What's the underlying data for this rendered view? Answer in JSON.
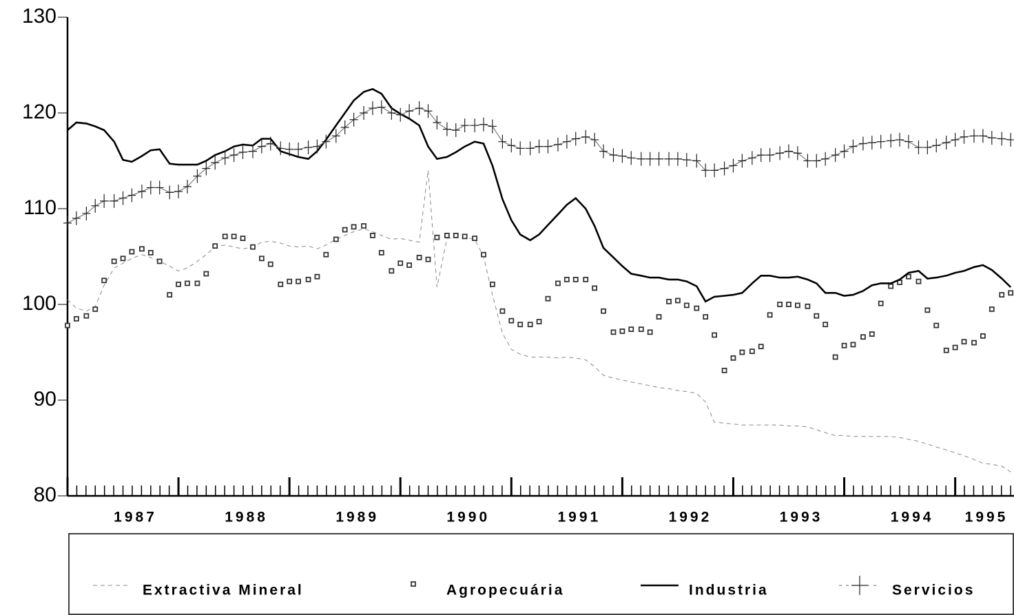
{
  "chart_data": {
    "type": "line",
    "xlim": [
      1987,
      1995.53
    ],
    "ylim": [
      80,
      130
    ],
    "yticks": [
      80,
      90,
      100,
      110,
      120,
      130
    ],
    "xticks": [
      {
        "value": 1987,
        "label": "1987"
      },
      {
        "value": 1988,
        "label": "1988"
      },
      {
        "value": 1989,
        "label": "1989"
      },
      {
        "value": 1990,
        "label": "1990"
      },
      {
        "value": 1991,
        "label": "1991"
      },
      {
        "value": 1992,
        "label": "1992"
      },
      {
        "value": 1993,
        "label": "1993"
      },
      {
        "value": 1994,
        "label": "1994"
      },
      {
        "value": 1995,
        "label": "1995"
      }
    ],
    "x": [
      1987,
      1987.08,
      1987.17,
      1987.25,
      1987.33,
      1987.42,
      1987.5,
      1987.58,
      1987.67,
      1987.75,
      1987.83,
      1987.92,
      1988,
      1988.08,
      1988.17,
      1988.25,
      1988.33,
      1988.42,
      1988.5,
      1988.58,
      1988.67,
      1988.75,
      1988.83,
      1988.92,
      1989,
      1989.08,
      1989.17,
      1989.25,
      1989.33,
      1989.42,
      1989.5,
      1989.58,
      1989.67,
      1989.75,
      1989.83,
      1989.92,
      1990,
      1990.08,
      1990.17,
      1990.25,
      1990.33,
      1990.42,
      1990.5,
      1990.58,
      1990.67,
      1990.75,
      1990.83,
      1990.92,
      1991,
      1991.08,
      1991.17,
      1991.25,
      1991.33,
      1991.42,
      1991.5,
      1991.58,
      1991.67,
      1991.75,
      1991.83,
      1991.92,
      1992,
      1992.08,
      1992.17,
      1992.25,
      1992.33,
      1992.42,
      1992.5,
      1992.58,
      1992.67,
      1992.75,
      1992.83,
      1992.92,
      1993,
      1993.08,
      1993.17,
      1993.25,
      1993.33,
      1993.42,
      1993.5,
      1993.58,
      1993.67,
      1993.75,
      1993.83,
      1993.92,
      1994,
      1994.08,
      1994.17,
      1994.25,
      1994.33,
      1994.42,
      1994.5,
      1994.58,
      1994.67,
      1994.75,
      1994.83,
      1994.92,
      1995,
      1995.08,
      1995.17,
      1995.25,
      1995.33,
      1995.42,
      1995.5
    ],
    "legend": "bottom",
    "series": [
      {
        "name": "Extractiva Mineral",
        "color": "#888888",
        "linestyle": "dashed",
        "marker": "none",
        "values": [
          100.5,
          99.6,
          99.3,
          99.8,
          102.0,
          103.8,
          104.3,
          104.8,
          105.2,
          104.9,
          104.5,
          104.0,
          103.5,
          103.8,
          104.5,
          105.2,
          106.0,
          106.2,
          106.0,
          105.8,
          106.0,
          106.5,
          106.6,
          106.4,
          106.1,
          106.0,
          106.1,
          105.8,
          106.2,
          106.8,
          107.2,
          107.6,
          107.9,
          107.6,
          107.2,
          106.8,
          106.9,
          106.7,
          106.5,
          114.0,
          101.8,
          106.9,
          107.0,
          107.0,
          106.8,
          105.0,
          101.0,
          97.0,
          95.3,
          94.8,
          94.5,
          94.5,
          94.5,
          94.4,
          94.5,
          94.4,
          94.2,
          93.5,
          92.6,
          92.3,
          92.1,
          91.9,
          91.7,
          91.5,
          91.3,
          91.2,
          91.0,
          90.9,
          90.7,
          89.8,
          87.7,
          87.6,
          87.5,
          87.4,
          87.4,
          87.4,
          87.4,
          87.4,
          87.3,
          87.3,
          87.2,
          86.9,
          86.6,
          86.3,
          86.3,
          86.2,
          86.2,
          86.2,
          86.2,
          86.2,
          86.1,
          85.9,
          85.7,
          85.4,
          85.1,
          84.8,
          84.5,
          84.2,
          83.8,
          83.4,
          83.3,
          83.1,
          82.5
        ]
      },
      {
        "name": "Agropecuária",
        "color": "#333333",
        "linestyle": "none",
        "marker": "square",
        "values": [
          97.8,
          98.5,
          98.8,
          99.5,
          102.5,
          104.5,
          104.8,
          105.5,
          105.8,
          105.4,
          104.5,
          101.0,
          102.1,
          102.2,
          102.2,
          103.2,
          106.1,
          107.1,
          107.1,
          106.9,
          106.0,
          104.8,
          104.2,
          102.1,
          102.4,
          102.4,
          102.6,
          102.9,
          105.2,
          106.8,
          107.8,
          108.1,
          108.2,
          107.2,
          105.4,
          103.5,
          104.3,
          104.1,
          104.9,
          104.7,
          107.0,
          107.2,
          107.2,
          107.1,
          106.9,
          105.2,
          102.1,
          99.3,
          98.3,
          97.9,
          97.9,
          98.2,
          100.6,
          102.2,
          102.6,
          102.6,
          102.6,
          101.7,
          99.3,
          97.1,
          97.2,
          97.4,
          97.4,
          97.1,
          98.7,
          100.3,
          100.4,
          99.9,
          99.6,
          98.7,
          96.8,
          93.1,
          94.4,
          95.0,
          95.1,
          95.6,
          98.9,
          100.0,
          100.0,
          99.9,
          99.8,
          98.8,
          97.9,
          94.5,
          95.7,
          95.8,
          96.6,
          96.9,
          100.1,
          101.9,
          102.3,
          102.9,
          102.4,
          99.4,
          97.8,
          95.2,
          95.5,
          96.1,
          96.0,
          96.7,
          99.5,
          101.0,
          101.2
        ]
      },
      {
        "name": "Industria",
        "color": "#000000",
        "linestyle": "solid",
        "marker": "none",
        "values": [
          118.2,
          119.0,
          118.9,
          118.6,
          118.2,
          117.0,
          115.1,
          114.9,
          115.5,
          116.1,
          116.2,
          114.7,
          114.6,
          114.6,
          114.6,
          115.0,
          115.6,
          116.0,
          116.5,
          116.7,
          116.6,
          117.3,
          117.3,
          116.0,
          115.7,
          115.4,
          115.2,
          116.0,
          117.2,
          118.7,
          120.0,
          121.3,
          122.2,
          122.5,
          122.0,
          120.5,
          119.9,
          119.4,
          118.7,
          116.5,
          115.2,
          115.4,
          115.9,
          116.5,
          117.0,
          116.8,
          114.5,
          111.0,
          108.8,
          107.3,
          106.7,
          107.3,
          108.3,
          109.4,
          110.4,
          111.1,
          110.0,
          108.2,
          105.9,
          104.9,
          104.0,
          103.2,
          103.0,
          102.8,
          102.8,
          102.6,
          102.6,
          102.4,
          101.9,
          100.3,
          100.8,
          100.9,
          101.0,
          101.2,
          102.2,
          103.0,
          103.0,
          102.8,
          102.8,
          102.9,
          102.6,
          102.2,
          101.2,
          101.2,
          100.9,
          101.0,
          101.4,
          102.0,
          102.2,
          102.2,
          102.6,
          103.3,
          103.5,
          102.7,
          102.8,
          103.0,
          103.3,
          103.5,
          103.9,
          104.1,
          103.6,
          102.7,
          101.8
        ]
      },
      {
        "name": "Servicios",
        "color": "#666666",
        "linestyle": "thin",
        "marker": "plus",
        "values": [
          108.5,
          109.0,
          109.5,
          110.3,
          110.8,
          110.8,
          111.1,
          111.4,
          111.8,
          112.2,
          112.2,
          111.7,
          111.8,
          112.3,
          113.4,
          114.2,
          114.8,
          115.3,
          115.6,
          115.9,
          116.0,
          116.5,
          116.8,
          116.3,
          116.2,
          116.2,
          116.4,
          116.5,
          117.0,
          117.6,
          118.5,
          119.3,
          120.0,
          120.5,
          120.6,
          120.0,
          119.8,
          120.2,
          120.5,
          120.2,
          119.0,
          118.3,
          118.2,
          118.7,
          118.7,
          118.8,
          118.6,
          117.0,
          116.6,
          116.3,
          116.3,
          116.5,
          116.5,
          116.7,
          117.0,
          117.3,
          117.5,
          117.2,
          116.0,
          115.6,
          115.5,
          115.3,
          115.2,
          115.2,
          115.2,
          115.2,
          115.2,
          115.1,
          115.0,
          114.0,
          114.0,
          114.2,
          114.5,
          115.0,
          115.3,
          115.6,
          115.6,
          115.8,
          116.0,
          115.8,
          115.0,
          115.0,
          115.2,
          115.6,
          116.0,
          116.5,
          116.8,
          116.9,
          117.0,
          117.1,
          117.2,
          117.0,
          116.4,
          116.4,
          116.6,
          116.9,
          117.2,
          117.5,
          117.6,
          117.6,
          117.4,
          117.3,
          117.2
        ]
      }
    ]
  }
}
